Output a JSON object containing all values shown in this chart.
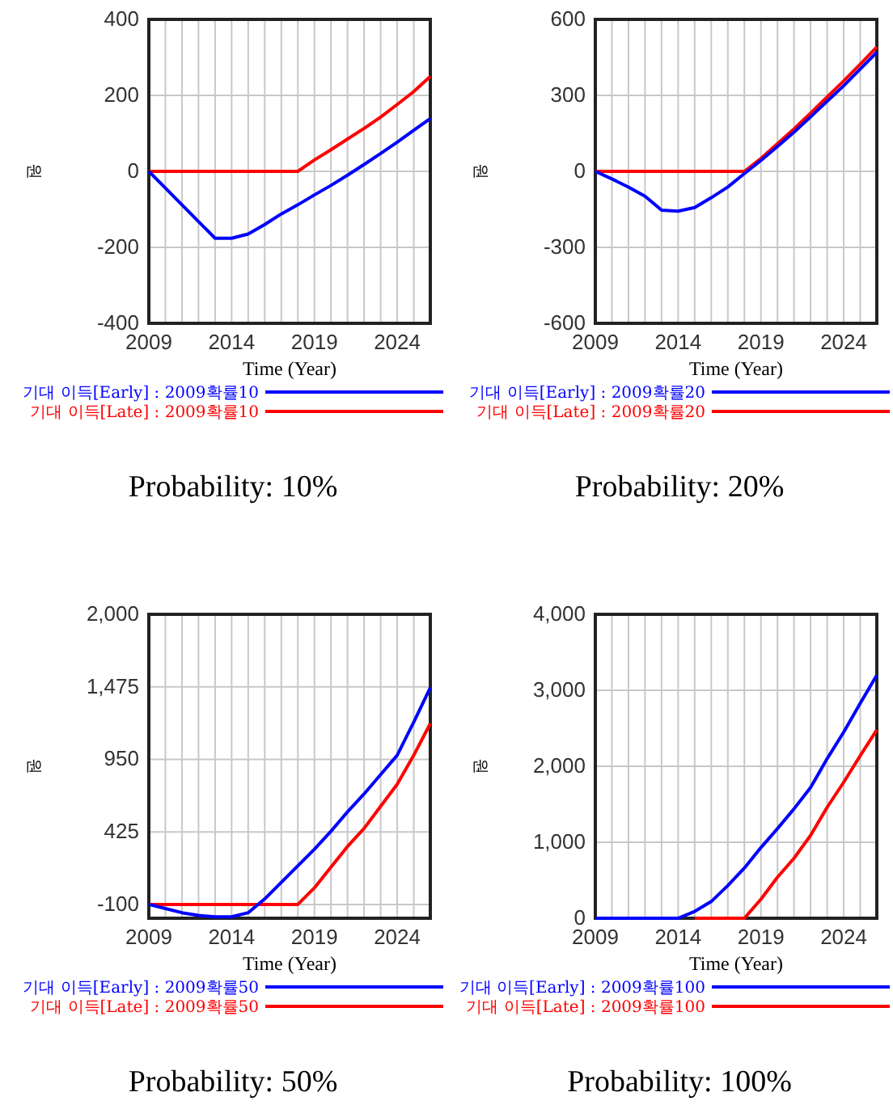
{
  "chart_data": [
    {
      "type": "line",
      "xlabel": "Time (Year)",
      "ylabel": "원",
      "xlim": [
        2009,
        2026
      ],
      "xticks": [
        2009,
        {
          "value": 2010,
          "label": null
        },
        {
          "value": 2011,
          "label": null
        },
        {
          "value": 2012,
          "label": null
        },
        {
          "value": 2013,
          "label": null
        },
        2014,
        {
          "value": 2015,
          "label": null
        },
        {
          "value": 2016,
          "label": null
        },
        {
          "value": 2017,
          "label": null
        },
        {
          "value": 2018,
          "label": null
        },
        2019,
        {
          "value": 2020,
          "label": null
        },
        {
          "value": 2021,
          "label": null
        },
        {
          "value": 2022,
          "label": null
        },
        {
          "value": 2023,
          "label": null
        },
        2024,
        {
          "value": 2025,
          "label": null
        }
      ],
      "ylim": [
        -400,
        400
      ],
      "yticks": [
        -400,
        -200,
        0,
        200,
        400
      ],
      "grid": true,
      "legend": "bottom",
      "annotations": [
        "Probability: 10%"
      ],
      "x": [
        2009,
        2010,
        2011,
        2012,
        2013,
        2014,
        2015,
        2016,
        2017,
        2018,
        2019,
        2020,
        2021,
        2022,
        2023,
        2024,
        2025,
        2026
      ],
      "series": [
        {
          "name": "기대 이득[Early] : 2009확률10",
          "color": "#0000ff",
          "values": [
            0,
            -44,
            -88,
            -132,
            -176,
            -176,
            -165,
            -140,
            -112,
            -88,
            -62,
            -37,
            -10,
            18,
            47,
            77,
            108,
            139
          ]
        },
        {
          "name": "기대 이득[Late] : 2009확률10",
          "color": "#ff0000",
          "values": [
            0,
            0,
            0,
            0,
            0,
            0,
            0,
            0,
            0,
            0,
            30,
            57,
            85,
            113,
            143,
            176,
            210,
            250
          ]
        }
      ]
    },
    {
      "type": "line",
      "xlabel": "Time (Year)",
      "ylabel": "원",
      "xlim": [
        2009,
        2026
      ],
      "xticks": [
        2009,
        {
          "value": 2010,
          "label": null
        },
        {
          "value": 2011,
          "label": null
        },
        {
          "value": 2012,
          "label": null
        },
        {
          "value": 2013,
          "label": null
        },
        2014,
        {
          "value": 2015,
          "label": null
        },
        {
          "value": 2016,
          "label": null
        },
        {
          "value": 2017,
          "label": null
        },
        {
          "value": 2018,
          "label": null
        },
        2019,
        {
          "value": 2020,
          "label": null
        },
        {
          "value": 2021,
          "label": null
        },
        {
          "value": 2022,
          "label": null
        },
        {
          "value": 2023,
          "label": null
        },
        2024,
        {
          "value": 2025,
          "label": null
        }
      ],
      "ylim": [
        -600,
        600
      ],
      "yticks": [
        -600,
        -300,
        0,
        300,
        600
      ],
      "grid": true,
      "legend": "bottom",
      "annotations": [
        "Probability: 20%"
      ],
      "x": [
        2009,
        2010,
        2011,
        2012,
        2013,
        2014,
        2015,
        2016,
        2017,
        2018,
        2019,
        2020,
        2021,
        2022,
        2023,
        2024,
        2025,
        2026
      ],
      "series": [
        {
          "name": "기대 이득[Early] : 2009확률20",
          "color": "#0000ff",
          "values": [
            0,
            -30,
            -62,
            -98,
            -153,
            -157,
            -143,
            -104,
            -62,
            -9,
            43,
            98,
            155,
            215,
            277,
            338,
            404,
            470
          ]
        },
        {
          "name": "기대 이득[Late] : 2009확률20",
          "color": "#ff0000",
          "values": [
            0,
            0,
            0,
            0,
            0,
            0,
            0,
            0,
            0,
            0,
            51,
            109,
            168,
            230,
            294,
            357,
            423,
            491
          ]
        }
      ]
    },
    {
      "type": "line",
      "xlabel": "Time (Year)",
      "ylabel": "원",
      "xlim": [
        2009,
        2026
      ],
      "xticks": [
        2009,
        {
          "value": 2010,
          "label": null
        },
        {
          "value": 2011,
          "label": null
        },
        {
          "value": 2012,
          "label": null
        },
        {
          "value": 2013,
          "label": null
        },
        2014,
        {
          "value": 2015,
          "label": null
        },
        {
          "value": 2016,
          "label": null
        },
        {
          "value": 2017,
          "label": null
        },
        {
          "value": 2018,
          "label": null
        },
        2019,
        {
          "value": 2020,
          "label": null
        },
        {
          "value": 2021,
          "label": null
        },
        {
          "value": 2022,
          "label": null
        },
        {
          "value": 2023,
          "label": null
        },
        2024,
        {
          "value": 2025,
          "label": null
        }
      ],
      "ylim": [
        -200,
        2000
      ],
      "yticks": [
        -100,
        425,
        950,
        {
          "value": 1475,
          "label": "1,475"
        },
        {
          "value": 2000,
          "label": "2,000"
        }
      ],
      "grid": true,
      "legend": "bottom",
      "annotations": [
        "Probability: 50%"
      ],
      "x": [
        2009,
        2010,
        2011,
        2012,
        2013,
        2014,
        2015,
        2016,
        2017,
        2018,
        2019,
        2020,
        2021,
        2022,
        2023,
        2024,
        2025,
        2026
      ],
      "series": [
        {
          "name": "기대 이득[Early] : 2009확률50",
          "color": "#0000ff",
          "values": [
            -100,
            -130,
            -160,
            -180,
            -190,
            -190,
            -160,
            -60,
            60,
            180,
            300,
            430,
            570,
            700,
            840,
            980,
            1220,
            1470
          ]
        },
        {
          "name": "기대 이득[Late] : 2009확률50",
          "color": "#ff0000",
          "values": [
            -100,
            -100,
            -100,
            -100,
            -100,
            -100,
            -100,
            -100,
            -100,
            -100,
            20,
            170,
            320,
            450,
            610,
            770,
            980,
            1210
          ]
        }
      ]
    },
    {
      "type": "line",
      "xlabel": "Time (Year)",
      "ylabel": "원",
      "xlim": [
        2009,
        2026
      ],
      "xticks": [
        2009,
        {
          "value": 2010,
          "label": null
        },
        {
          "value": 2011,
          "label": null
        },
        {
          "value": 2012,
          "label": null
        },
        {
          "value": 2013,
          "label": null
        },
        2014,
        {
          "value": 2015,
          "label": null
        },
        {
          "value": 2016,
          "label": null
        },
        {
          "value": 2017,
          "label": null
        },
        {
          "value": 2018,
          "label": null
        },
        2019,
        {
          "value": 2020,
          "label": null
        },
        {
          "value": 2021,
          "label": null
        },
        {
          "value": 2022,
          "label": null
        },
        {
          "value": 2023,
          "label": null
        },
        2024,
        {
          "value": 2025,
          "label": null
        }
      ],
      "ylim": [
        0,
        4000
      ],
      "yticks": [
        0,
        {
          "value": 1000,
          "label": "1,000"
        },
        {
          "value": 2000,
          "label": "2,000"
        },
        {
          "value": 3000,
          "label": "3,000"
        },
        {
          "value": 4000,
          "label": "4,000"
        }
      ],
      "grid": true,
      "legend": "bottom",
      "annotations": [
        "Probability: 100%"
      ],
      "x": [
        2009,
        2010,
        2011,
        2012,
        2013,
        2014,
        2015,
        2016,
        2017,
        2018,
        2019,
        2020,
        2021,
        2022,
        2023,
        2024,
        2025,
        2026
      ],
      "series": [
        {
          "name": "기대 이득[Early] : 2009확률100",
          "color": "#0000ff",
          "values": [
            0,
            0,
            0,
            0,
            0,
            0,
            90,
            220,
            430,
            660,
            930,
            1180,
            1440,
            1720,
            2100,
            2450,
            2830,
            3200
          ]
        },
        {
          "name": "기대 이득[Late] : 2009확률100",
          "color": "#ff0000",
          "values": [
            null,
            null,
            null,
            null,
            null,
            null,
            0,
            0,
            0,
            0,
            250,
            540,
            790,
            1090,
            1460,
            1790,
            2140,
            2480
          ]
        }
      ]
    }
  ]
}
